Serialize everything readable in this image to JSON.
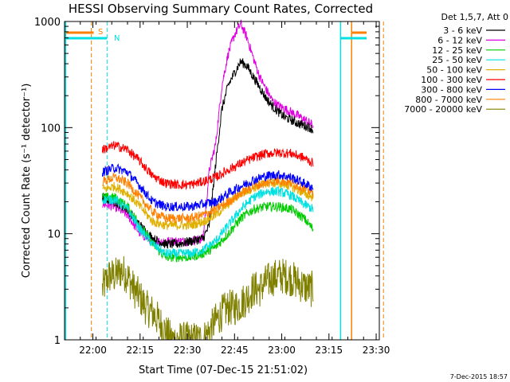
{
  "chart_data": {
    "type": "line",
    "title": "HESSI Observing Summary Count Rates, Corrected",
    "xlabel": "Start Time (07-Dec-15 21:51:02)",
    "ylabel": "Corrected Count Rate (s⁻¹ detector⁻¹)",
    "yscale": "log",
    "ylim": [
      1,
      1000
    ],
    "xlim_minutes": [
      0,
      100
    ],
    "x_tick_labels": [
      "22:00",
      "22:15",
      "22:30",
      "22:45",
      "23:00",
      "23:15",
      "23:30"
    ],
    "x_tick_minutes": [
      9,
      24,
      39,
      54,
      69,
      84,
      99
    ],
    "y_tick_labels": [
      "1",
      "10",
      "100",
      "1000"
    ],
    "y_tick_values": [
      1,
      10,
      100,
      1000
    ],
    "legend_header": "Det 1,5,7, Att 0",
    "legend_position": "top-right",
    "footer_timestamp": "7-Dec-2015 18:57",
    "markers": {
      "saa": "S",
      "night": "N"
    },
    "intervals": {
      "saa_lines_min": [
        8.5,
        91.2
      ],
      "night_lines_min": [
        13.5,
        87.7
      ],
      "data_span_min": [
        12,
        79
      ]
    },
    "series": [
      {
        "name": "3 - 6 keV",
        "color": "#000000",
        "x": [
          12,
          16,
          20,
          24,
          28,
          32,
          36,
          40,
          44,
          46,
          48,
          50,
          52,
          54,
          56,
          58,
          60,
          62,
          64,
          66,
          68,
          70,
          72,
          74,
          76,
          78,
          79
        ],
        "y": [
          22,
          20,
          17,
          12,
          9,
          8,
          8,
          8.5,
          9,
          12,
          45,
          150,
          250,
          330,
          420,
          380,
          300,
          240,
          190,
          160,
          140,
          125,
          118,
          110,
          105,
          100,
          95
        ]
      },
      {
        "name": "6 - 12 keV",
        "color": "#e000e0",
        "x": [
          12,
          16,
          20,
          24,
          28,
          32,
          36,
          40,
          44,
          46,
          48,
          50,
          52,
          54,
          56,
          58,
          60,
          62,
          64,
          66,
          68,
          70,
          72,
          74,
          76,
          78,
          79
        ],
        "y": [
          19,
          18,
          15,
          10,
          8.5,
          8.5,
          8.5,
          8.5,
          9,
          40,
          70,
          250,
          500,
          750,
          950,
          700,
          450,
          300,
          230,
          180,
          160,
          150,
          140,
          130,
          120,
          110,
          105
        ]
      },
      {
        "name": "12 - 25 keV",
        "color": "#00cc00",
        "x": [
          12,
          16,
          20,
          24,
          28,
          32,
          36,
          40,
          44,
          48,
          52,
          56,
          60,
          64,
          68,
          72,
          76,
          79
        ],
        "y": [
          22,
          22,
          18,
          12,
          8,
          6,
          6,
          6,
          6.5,
          7.5,
          10,
          14,
          17,
          18,
          18,
          17,
          14,
          11
        ]
      },
      {
        "name": "25 - 50 keV",
        "color": "#00e0e0",
        "x": [
          12,
          16,
          20,
          24,
          28,
          32,
          36,
          40,
          44,
          48,
          52,
          56,
          60,
          64,
          68,
          72,
          76,
          79
        ],
        "y": [
          21,
          21,
          17,
          11,
          8,
          6.5,
          6.5,
          6.5,
          7,
          8.5,
          12,
          17,
          22,
          25,
          25,
          23,
          19,
          17
        ]
      },
      {
        "name": "50 - 100 keV",
        "color": "#e0b000",
        "x": [
          12,
          16,
          20,
          24,
          28,
          32,
          36,
          40,
          44,
          48,
          52,
          56,
          60,
          64,
          68,
          72,
          76,
          79
        ],
        "y": [
          26,
          28,
          24,
          18,
          13,
          12,
          12,
          12,
          13,
          15,
          19,
          24,
          27,
          30,
          30,
          28,
          24,
          22
        ]
      },
      {
        "name": "100 - 300 keV",
        "color": "#ff0000",
        "x": [
          12,
          16,
          20,
          24,
          28,
          32,
          36,
          40,
          44,
          48,
          52,
          56,
          60,
          64,
          68,
          72,
          76,
          79
        ],
        "y": [
          62,
          68,
          62,
          48,
          35,
          30,
          29,
          29,
          31,
          34,
          40,
          46,
          52,
          57,
          58,
          57,
          52,
          46
        ]
      },
      {
        "name": "300 - 800 keV",
        "color": "#0000ff",
        "x": [
          12,
          16,
          20,
          24,
          28,
          32,
          36,
          40,
          44,
          48,
          52,
          56,
          60,
          64,
          68,
          72,
          76,
          79
        ],
        "y": [
          38,
          42,
          38,
          28,
          20,
          18,
          18,
          18,
          19,
          20,
          24,
          28,
          32,
          35,
          36,
          34,
          30,
          27
        ]
      },
      {
        "name": "800 - 7000 keV",
        "color": "#ff8000",
        "x": [
          12,
          16,
          20,
          24,
          28,
          32,
          36,
          40,
          44,
          48,
          52,
          56,
          60,
          64,
          68,
          72,
          76,
          79
        ],
        "y": [
          31,
          34,
          30,
          22,
          16,
          14,
          14,
          14,
          15,
          17,
          20,
          24,
          28,
          30,
          32,
          30,
          27,
          24
        ]
      },
      {
        "name": "7000 - 20000 keV",
        "color": "#808000",
        "x": [
          12,
          14,
          16,
          18,
          20,
          22,
          24,
          26,
          28,
          30,
          32,
          34,
          36,
          38,
          40,
          42,
          44,
          46,
          48,
          50,
          52,
          54,
          56,
          58,
          60,
          62,
          64,
          66,
          68,
          70,
          72,
          74,
          76,
          78,
          79
        ],
        "y": [
          3,
          4,
          4,
          4.5,
          4,
          3,
          2.5,
          2,
          1.8,
          1.5,
          1.2,
          1,
          1,
          1,
          1,
          1,
          1,
          1.2,
          1.5,
          1.8,
          2,
          2,
          2.2,
          2.5,
          3,
          3,
          3.5,
          3.8,
          4,
          4,
          3.8,
          3.5,
          3.2,
          3,
          3
        ]
      }
    ]
  }
}
